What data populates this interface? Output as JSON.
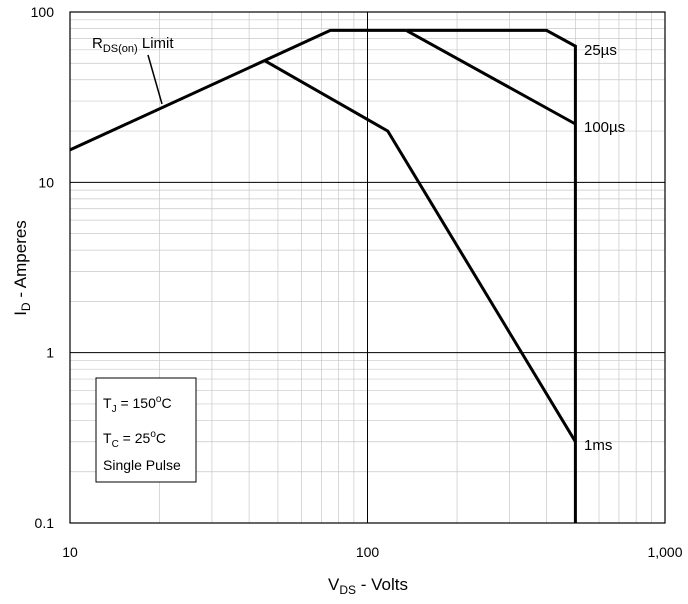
{
  "chart_data": {
    "type": "line",
    "title": "",
    "x_scale": "log",
    "y_scale": "log",
    "xlim": [
      10,
      1000
    ],
    "ylim": [
      0.1,
      100
    ],
    "grid": true,
    "xlabel": {
      "main": "V",
      "sub": "DS",
      "rest": " - Volts"
    },
    "ylabel": {
      "main": "I",
      "sub": "D",
      "rest": " - Amperes"
    },
    "x_ticks": [
      {
        "value": 10,
        "label": "10"
      },
      {
        "value": 100,
        "label": "100"
      },
      {
        "value": 1000,
        "label": "1,000"
      }
    ],
    "y_ticks": [
      {
        "value": 0.1,
        "label": "0.1"
      },
      {
        "value": 1,
        "label": "1"
      },
      {
        "value": 10,
        "label": "10"
      },
      {
        "value": 100,
        "label": "100"
      }
    ],
    "series": [
      {
        "name": "R_DS(on) Limit",
        "points": [
          [
            10,
            15.5
          ],
          [
            75,
            78
          ],
          [
            135,
            78
          ]
        ]
      },
      {
        "name": "25µs",
        "points": [
          [
            135,
            78
          ],
          [
            400,
            78
          ],
          [
            500,
            63
          ],
          [
            500,
            0.1
          ]
        ]
      },
      {
        "name": "100µs",
        "points": [
          [
            135,
            78
          ],
          [
            500,
            22
          ]
        ]
      },
      {
        "name": "1ms",
        "points": [
          [
            45,
            52
          ],
          [
            117,
            20
          ],
          [
            500,
            0.3
          ]
        ]
      }
    ],
    "annotations": [
      {
        "id": "rdson",
        "main": "R",
        "sub": "DS(on)",
        "rest": " Limit"
      },
      {
        "id": "t25",
        "text": "25µs"
      },
      {
        "id": "t100",
        "text": "100µs"
      },
      {
        "id": "t1ms",
        "text": "1ms"
      }
    ],
    "conditions_box": {
      "tj": {
        "main": "T",
        "sub": "J",
        "rest1": " = 150",
        "sup": "o",
        "rest2": "C"
      },
      "tc": {
        "main": "T",
        "sub": "C",
        "rest1": " = 25",
        "sup": "o",
        "rest2": "C"
      },
      "pulse": "Single Pulse"
    }
  }
}
